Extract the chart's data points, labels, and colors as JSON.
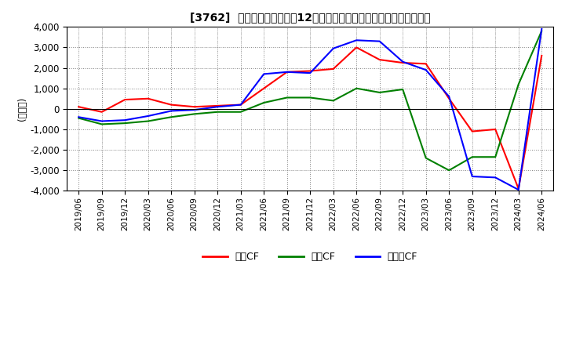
{
  "title": "[3762]  キャッシュフローの12か月移動合計の対前年同期増減額の推移",
  "ylabel": "(百万円)",
  "ylim": [
    -4000,
    4000
  ],
  "yticks": [
    -4000,
    -3000,
    -2000,
    -1000,
    0,
    1000,
    2000,
    3000,
    4000
  ],
  "legend_labels": [
    "営業CF",
    "投資CF",
    "フリーCF"
  ],
  "line_colors": [
    "#ff0000",
    "#008000",
    "#0000ff"
  ],
  "dates": [
    "2019/06",
    "2019/09",
    "2019/12",
    "2020/03",
    "2020/06",
    "2020/09",
    "2020/12",
    "2021/03",
    "2021/06",
    "2021/09",
    "2021/12",
    "2022/03",
    "2022/06",
    "2022/09",
    "2022/12",
    "2023/03",
    "2023/06",
    "2023/09",
    "2023/12",
    "2024/03",
    "2024/06"
  ],
  "eigyo_cf": [
    100,
    -150,
    450,
    500,
    200,
    100,
    150,
    200,
    1000,
    1800,
    1850,
    1950,
    3000,
    2400,
    2250,
    2200,
    500,
    -1100,
    -1000,
    -3900,
    2600
  ],
  "toshi_cf": [
    -450,
    -750,
    -700,
    -600,
    -400,
    -250,
    -150,
    -150,
    300,
    550,
    550,
    400,
    1000,
    800,
    950,
    -2400,
    -3000,
    -2350,
    -2350,
    1200,
    3800
  ],
  "free_cf": [
    -400,
    -600,
    -550,
    -350,
    -100,
    -50,
    100,
    200,
    1700,
    1800,
    1750,
    2950,
    3350,
    3300,
    2300,
    1900,
    600,
    -3300,
    -3350,
    -3950,
    3900
  ]
}
